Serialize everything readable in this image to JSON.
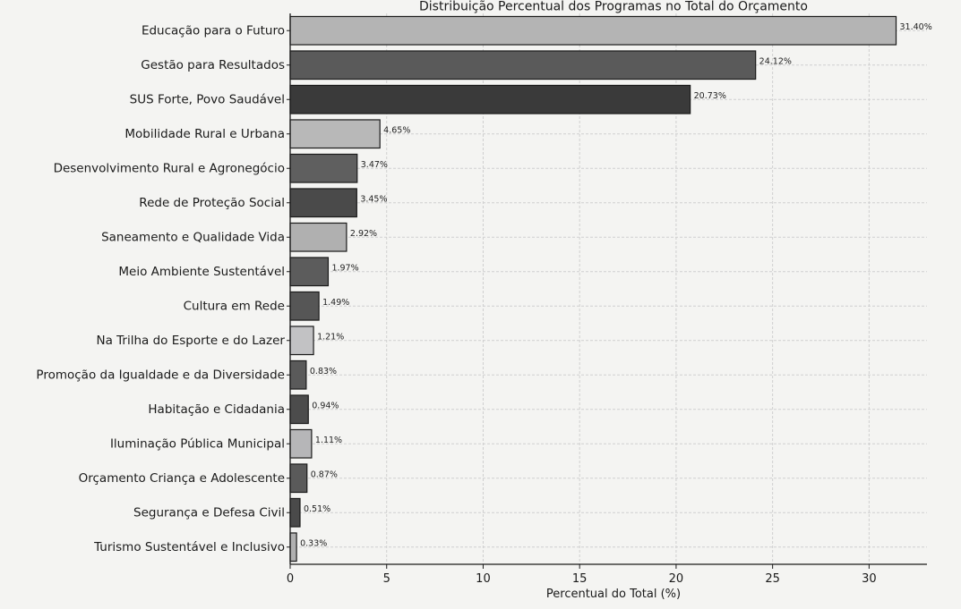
{
  "chart_data": {
    "type": "bar",
    "orientation": "horizontal",
    "title": "Distribuição Percentual dos Programas no Total do Orçamento",
    "xlabel": "Percentual do Total (%)",
    "ylabel": "",
    "xlim": [
      0,
      33
    ],
    "xticks": [
      0,
      5,
      10,
      15,
      20,
      25,
      30
    ],
    "grid": true,
    "categories": [
      "Educação para o Futuro",
      "Gestão para Resultados",
      "SUS Forte, Povo Saudável",
      "Mobilidade Rural e Urbana",
      "Desenvolvimento Rural e Agronegócio",
      "Rede de Proteção Social",
      "Saneamento e Qualidade Vida",
      "Meio Ambiente Sustentável",
      "Cultura em Rede",
      "Na Trilha do Esporte e do Lazer",
      "Promoção da Igualdade e da Diversidade",
      "Habitação e Cidadania",
      "Iluminação Pública Municipal",
      "Orçamento Criança e Adolescente",
      "Segurança e Defesa Civil",
      "Turismo Sustentável e Inclusivo"
    ],
    "values": [
      31.4,
      24.12,
      20.73,
      4.65,
      3.47,
      3.45,
      2.92,
      1.97,
      1.49,
      1.21,
      0.83,
      0.94,
      1.11,
      0.87,
      0.51,
      0.33
    ],
    "value_labels": [
      "31.40%",
      "24.12%",
      "20.73%",
      "4.65%",
      "3.47%",
      "3.45%",
      "2.92%",
      "1.97%",
      "1.49%",
      "1.21%",
      "0.83%",
      "0.94%",
      "1.11%",
      "0.87%",
      "0.51%",
      "0.33%"
    ],
    "bar_colors": [
      "#b4b4b4",
      "#5a5a5a",
      "#3a3a3a",
      "#b8b8b8",
      "#5f5f5f",
      "#4a4a4a",
      "#b0b0b0",
      "#5c5c5c",
      "#565656",
      "#c2c2c4",
      "#5a5a5a",
      "#4c4c4c",
      "#b6b6b8",
      "#5a5a5a",
      "#4a4a4a",
      "#b0b0b0"
    ]
  }
}
